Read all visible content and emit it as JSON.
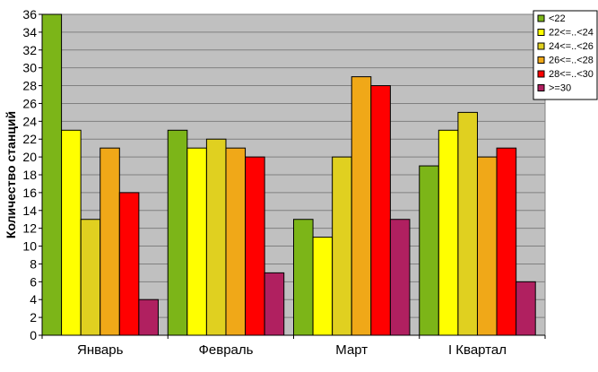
{
  "chart_data": {
    "type": "bar",
    "ylabel": "Количество станций",
    "xlabel": "",
    "title": "",
    "ylim": [
      0,
      36
    ],
    "ytick_step": 2,
    "grid": true,
    "legend_position": "top-right",
    "plot_background": "#c0c0c0",
    "categories": [
      "Январь",
      "Февраль",
      "Март",
      "I Квартал"
    ],
    "series": [
      {
        "name": "<22",
        "color": "#7cb518",
        "values": [
          36,
          23,
          13,
          19
        ]
      },
      {
        "name": "22<=..<24",
        "color": "#ffff00",
        "values": [
          23,
          21,
          11,
          23
        ]
      },
      {
        "name": "24<=..<26",
        "color": "#e0d020",
        "values": [
          13,
          22,
          20,
          25
        ]
      },
      {
        "name": "26<=..<28",
        "color": "#f0a818",
        "values": [
          21,
          21,
          29,
          20
        ]
      },
      {
        "name": "28<=..<30",
        "color": "#ff0000",
        "values": [
          16,
          20,
          28,
          21
        ]
      },
      {
        "name": ">=30",
        "color": "#b02060",
        "values": [
          4,
          7,
          13,
          6
        ]
      }
    ]
  }
}
